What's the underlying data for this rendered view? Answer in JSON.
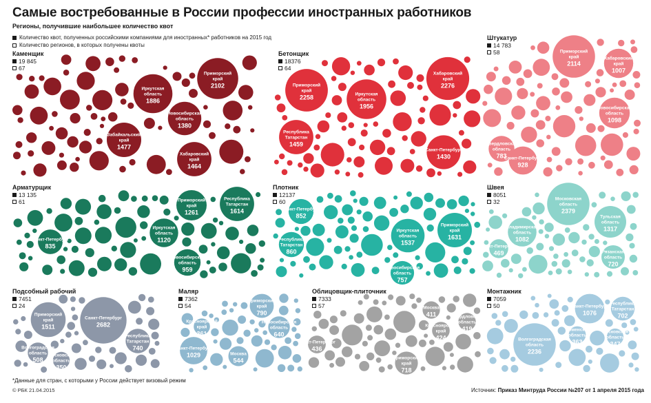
{
  "title": "Самые востребованные в России профессии иностранных работников",
  "subtitle": "Регионы, получившие наибольшее количество квот",
  "legend": {
    "quotas": "Количество квот, полученных российскими компаниями для иностранных* работников на 2015 год",
    "regions": "Количество регионов, в которых получены квоты"
  },
  "footnote": "*Данные для стран, с которыми у России действует визовый режим",
  "credit": "© РБК 21.04.2015",
  "source": {
    "label": "Источник:",
    "text": "Приказ Минтруда России №207 от 1 апреля 2015 года"
  },
  "colors": {
    "Каменщик": "#8b1c24",
    "Бетонщик": "#e0313b",
    "Штукатур": "#ee8087",
    "Арматурщик": "#1a7a5c",
    "Плотник": "#27b3a3",
    "Швея": "#8dd4cb",
    "Подсобный рабочий": "#8d97a8",
    "Маляр": "#8fb8cf",
    "Облицовщик-плиточник": "#a3a3a3",
    "Монтажник": "#a5cbe0"
  },
  "chart_data": [
    {
      "type": "bubble",
      "profession": "Каменщик",
      "total_quotas": "19 845",
      "regions": "67",
      "labeled": [
        {
          "region": "Приморский край",
          "value": 2102
        },
        {
          "region": "Иркутская область",
          "value": 1886
        },
        {
          "region": "Новосибирская область",
          "value": 1380
        },
        {
          "region": "Забайкальский край",
          "value": 1477
        },
        {
          "region": "Хабаровский край",
          "value": 1464
        }
      ]
    },
    {
      "type": "bubble",
      "profession": "Бетонщик",
      "total_quotas": "18376",
      "regions": "64",
      "labeled": [
        {
          "region": "Приморский край",
          "value": 2258
        },
        {
          "region": "Иркутская область",
          "value": 1956
        },
        {
          "region": "Хабаровский край",
          "value": 2276
        },
        {
          "region": "Республика Татарстан",
          "value": 1459
        },
        {
          "region": "Санкт-Петербург",
          "value": 1430
        }
      ]
    },
    {
      "type": "bubble",
      "profession": "Штукатур",
      "total_quotas": "14 783",
      "regions": "58",
      "labeled": [
        {
          "region": "Приморский край",
          "value": 2114
        },
        {
          "region": "Хабаровский край",
          "value": 1007
        },
        {
          "region": "Новосибирская область",
          "value": 1098
        },
        {
          "region": "Свердловская область",
          "value": 783
        },
        {
          "region": "Санкт-Петербург",
          "value": 928
        }
      ]
    },
    {
      "type": "bubble",
      "profession": "Арматурщик",
      "total_quotas": "13 135",
      "regions": "61",
      "labeled": [
        {
          "region": "Приморский край",
          "value": 1261
        },
        {
          "region": "Республика Татарстан",
          "value": 1614
        },
        {
          "region": "Иркутская область",
          "value": 1120
        },
        {
          "region": "Санкт-Петербург",
          "value": 835
        },
        {
          "region": "Новосибирская область",
          "value": 959
        }
      ]
    },
    {
      "type": "bubble",
      "profession": "Плотник",
      "total_quotas": "12137",
      "regions": "60",
      "labeled": [
        {
          "region": "Санкт-Петербург",
          "value": 852
        },
        {
          "region": "Иркутская область",
          "value": 1537
        },
        {
          "region": "Приморский край",
          "value": 1631
        },
        {
          "region": "Республика Татарстан",
          "value": 860
        },
        {
          "region": "Новосибирская область",
          "value": 757
        }
      ]
    },
    {
      "type": "bubble",
      "profession": "Швея",
      "total_quotas": "8051",
      "regions": "32",
      "labeled": [
        {
          "region": "Московская область",
          "value": 2379
        },
        {
          "region": "Владимирская область",
          "value": 1082
        },
        {
          "region": "Тульская область",
          "value": 1317
        },
        {
          "region": "Санкт-Петербург",
          "value": 469
        },
        {
          "region": "Рязанская область",
          "value": 720
        }
      ]
    },
    {
      "type": "bubble",
      "profession": "Подсобный рабочий",
      "total_quotas": "7451",
      "regions": "24",
      "labeled": [
        {
          "region": "Приморский край",
          "value": 1511
        },
        {
          "region": "Санкт-Петербург",
          "value": 2682
        },
        {
          "region": "Республика Татарстан",
          "value": 740
        },
        {
          "region": "Волгоградская область",
          "value": 508
        },
        {
          "region": "Московская область",
          "value": 350
        }
      ]
    },
    {
      "type": "bubble",
      "profession": "Маляр",
      "total_quotas": "7362",
      "regions": "54",
      "labeled": [
        {
          "region": "Приморский край",
          "value": 790
        },
        {
          "region": "Красноярский край",
          "value": 361
        },
        {
          "region": "Новосибирская область",
          "value": 640
        },
        {
          "region": "Санкт-Петербург",
          "value": 1029
        },
        {
          "region": "Москва",
          "value": 544
        }
      ]
    },
    {
      "type": "bubble",
      "profession": "Облицовщик-плиточник",
      "total_quotas": "7333",
      "regions": "57",
      "labeled": [
        {
          "region": "Москва",
          "value": 411
        },
        {
          "region": "Свердловская область",
          "value": 419
        },
        {
          "region": "Красноярский край",
          "value": 424
        },
        {
          "region": "Санкт-Петербург",
          "value": 436
        },
        {
          "region": "Приморский край",
          "value": 718
        }
      ]
    },
    {
      "type": "bubble",
      "profession": "Монтажник",
      "total_quotas": "7059",
      "regions": "50",
      "labeled": [
        {
          "region": "Санкт-Петербург",
          "value": 1076
        },
        {
          "region": "Республика Татарстан",
          "value": 702
        },
        {
          "region": "Тюменская область",
          "value": 363
        },
        {
          "region": "Московская область",
          "value": 347
        },
        {
          "region": "Волгоградская область",
          "value": 2236
        }
      ]
    }
  ]
}
